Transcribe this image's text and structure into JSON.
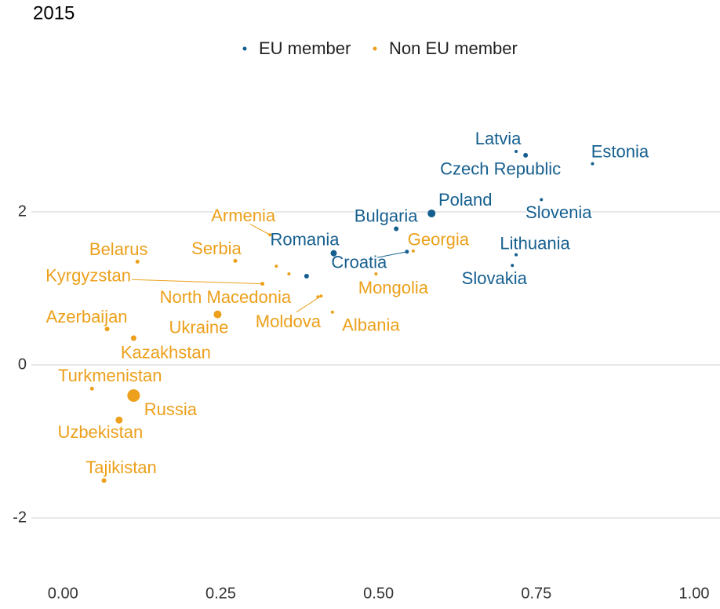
{
  "chart_data": {
    "type": "scatter",
    "title": "2015",
    "xlim": [
      -0.05,
      1.04
    ],
    "ylim": [
      -2.8,
      3.6
    ],
    "xticks": [
      {
        "value": 0,
        "label": "0.00"
      },
      {
        "value": 0.25,
        "label": "0.25"
      },
      {
        "value": 0.5,
        "label": "0.50"
      },
      {
        "value": 0.75,
        "label": "0.75"
      },
      {
        "value": 1,
        "label": "1.00"
      }
    ],
    "yticks": [
      -2,
      0,
      2
    ],
    "grid": true,
    "legend": "top",
    "series": [
      {
        "name": "EU member",
        "color": "#155f8f",
        "labels": [
          "Latvia",
          "Czech Republic",
          "Estonia",
          "Slovenia",
          "Poland",
          "Bulgaria",
          "Croatia",
          "Romania",
          "Lithuania",
          "Slovakia",
          null
        ],
        "x": [
          0.718,
          0.733,
          0.839,
          0.758,
          0.584,
          0.528,
          0.545,
          0.429,
          0.718,
          0.712,
          0.386
        ],
        "values": [
          2.79,
          2.74,
          2.63,
          2.16,
          1.98,
          1.78,
          1.48,
          1.46,
          1.44,
          1.3,
          1.16
        ],
        "sizes": [
          2,
          3,
          2,
          2,
          5,
          3,
          2.5,
          4,
          2,
          2,
          3
        ]
      },
      {
        "name": "Non EU member",
        "color": "#eca01b",
        "labels": [
          "Armenia",
          "Serbia",
          "Belarus",
          "Kyrgyzstan",
          null,
          null,
          "North Macedonia",
          "Moldova",
          "Albania",
          "Mongolia",
          "Georgia",
          "Ukraine",
          "Azerbaijan",
          "Kazakhstan",
          "Turkmenistan",
          "Russia",
          "Uzbekistan",
          "Tajikistan"
        ],
        "x": [
          0.328,
          0.273,
          0.118,
          0.316,
          0.338,
          0.358,
          0.404,
          0.409,
          0.427,
          0.496,
          0.555,
          0.245,
          0.07,
          0.112,
          0.046,
          0.112,
          0.089,
          0.065
        ],
        "values": [
          1.7,
          1.36,
          1.35,
          1.06,
          1.29,
          1.19,
          0.89,
          0.9,
          0.69,
          1.19,
          1.49,
          0.66,
          0.47,
          0.35,
          -0.31,
          -0.4,
          -0.72,
          -1.51
        ],
        "sizes": [
          2,
          2.5,
          2.5,
          2.5,
          2,
          2,
          2,
          2,
          2,
          2,
          2,
          5,
          3,
          3.5,
          2.5,
          8,
          4.5,
          3
        ]
      }
    ]
  }
}
